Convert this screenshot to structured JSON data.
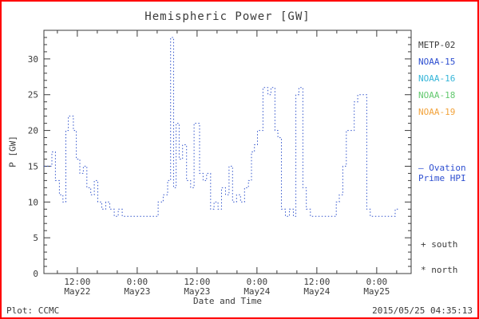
{
  "title": "Hemispheric Power [GW]",
  "axes": {
    "ylabel": "P [GW]",
    "xlabel": "Date and Time",
    "yticks": [
      0,
      5,
      10,
      15,
      20,
      25,
      30
    ],
    "xticks": [
      {
        "time": "12:00",
        "date": "May22"
      },
      {
        "time": "0:00",
        "date": "May23"
      },
      {
        "time": "12:00",
        "date": "May23"
      },
      {
        "time": "0:00",
        "date": "May24"
      },
      {
        "time": "12:00",
        "date": "May24"
      },
      {
        "time": "0:00",
        "date": "May25"
      }
    ]
  },
  "legend": {
    "satellites": [
      {
        "label": "METP-02",
        "color": "#3b3b3b"
      },
      {
        "label": "NOAA-15",
        "color": "#2e4fd0"
      },
      {
        "label": "NOAA-16",
        "color": "#37b6d9"
      },
      {
        "label": "NOAA-18",
        "color": "#63c96f"
      },
      {
        "label": "NOAA-19",
        "color": "#f2a33c"
      }
    ],
    "ovation": {
      "line1": "– Ovation",
      "line2": "Prime HPI",
      "color": "#2e4fd0"
    },
    "markers": [
      {
        "symbol": "+",
        "label": "south"
      },
      {
        "symbol": "*",
        "label": "north"
      }
    ]
  },
  "footer": {
    "left": "Plot: CCMC",
    "right": "2015/05/25 04:35:13"
  },
  "frame_color": "#ff0000",
  "chart_data": {
    "type": "line",
    "style": "dotted-step",
    "color": "#3355cc",
    "axis_color": "#3b3b3b",
    "title": "Hemispheric Power [GW]",
    "xlabel": "Date and Time",
    "ylabel": "P [GW]",
    "x_unit": "hours since 2015-05-22 00:00",
    "xlim": [
      5.3,
      78.9
    ],
    "ylim": [
      0,
      34
    ],
    "x_major_hours": [
      12,
      24,
      36,
      48,
      60,
      72
    ],
    "x_minor_step_hours": 4,
    "grid": false,
    "legend_position": "right",
    "points": [
      [
        5.3,
        15
      ],
      [
        6.9,
        17
      ],
      [
        7.6,
        13
      ],
      [
        8.4,
        11
      ],
      [
        9.1,
        10
      ],
      [
        9.7,
        20
      ],
      [
        10.2,
        22
      ],
      [
        11.2,
        20
      ],
      [
        11.8,
        16
      ],
      [
        12.5,
        14
      ],
      [
        13.2,
        15
      ],
      [
        13.9,
        12
      ],
      [
        14.7,
        11
      ],
      [
        15.4,
        13
      ],
      [
        16.1,
        10
      ],
      [
        16.9,
        9
      ],
      [
        17.7,
        10
      ],
      [
        18.5,
        9
      ],
      [
        19.4,
        8
      ],
      [
        20.2,
        9
      ],
      [
        21.0,
        8
      ],
      [
        27.4,
        8
      ],
      [
        28.2,
        10
      ],
      [
        29.2,
        11
      ],
      [
        30.1,
        13
      ],
      [
        30.7,
        33
      ],
      [
        31.3,
        12
      ],
      [
        31.8,
        21
      ],
      [
        32.4,
        16
      ],
      [
        33.1,
        18
      ],
      [
        33.9,
        13
      ],
      [
        34.7,
        12
      ],
      [
        35.4,
        21
      ],
      [
        36.5,
        14
      ],
      [
        37.2,
        13
      ],
      [
        37.9,
        14
      ],
      [
        38.7,
        9
      ],
      [
        39.4,
        10
      ],
      [
        40.2,
        9
      ],
      [
        40.9,
        12
      ],
      [
        41.7,
        11
      ],
      [
        42.4,
        15
      ],
      [
        43.1,
        10
      ],
      [
        43.9,
        11
      ],
      [
        44.7,
        10
      ],
      [
        45.5,
        12
      ],
      [
        46.3,
        13
      ],
      [
        46.9,
        17
      ],
      [
        47.5,
        18
      ],
      [
        48.1,
        20
      ],
      [
        49.2,
        26
      ],
      [
        50.2,
        25
      ],
      [
        50.8,
        26
      ],
      [
        51.6,
        20
      ],
      [
        52.2,
        19
      ],
      [
        52.9,
        9
      ],
      [
        53.7,
        8
      ],
      [
        54.5,
        9
      ],
      [
        55.3,
        8
      ],
      [
        55.8,
        25
      ],
      [
        56.4,
        26
      ],
      [
        57.2,
        12
      ],
      [
        57.9,
        9
      ],
      [
        58.7,
        8
      ],
      [
        63.4,
        8
      ],
      [
        63.9,
        10
      ],
      [
        64.5,
        11
      ],
      [
        65.2,
        15
      ],
      [
        65.9,
        20
      ],
      [
        66.9,
        20
      ],
      [
        67.5,
        24
      ],
      [
        68.2,
        25
      ],
      [
        70.0,
        9
      ],
      [
        70.7,
        8
      ],
      [
        75.7,
        9
      ],
      [
        76.6,
        9
      ]
    ]
  }
}
